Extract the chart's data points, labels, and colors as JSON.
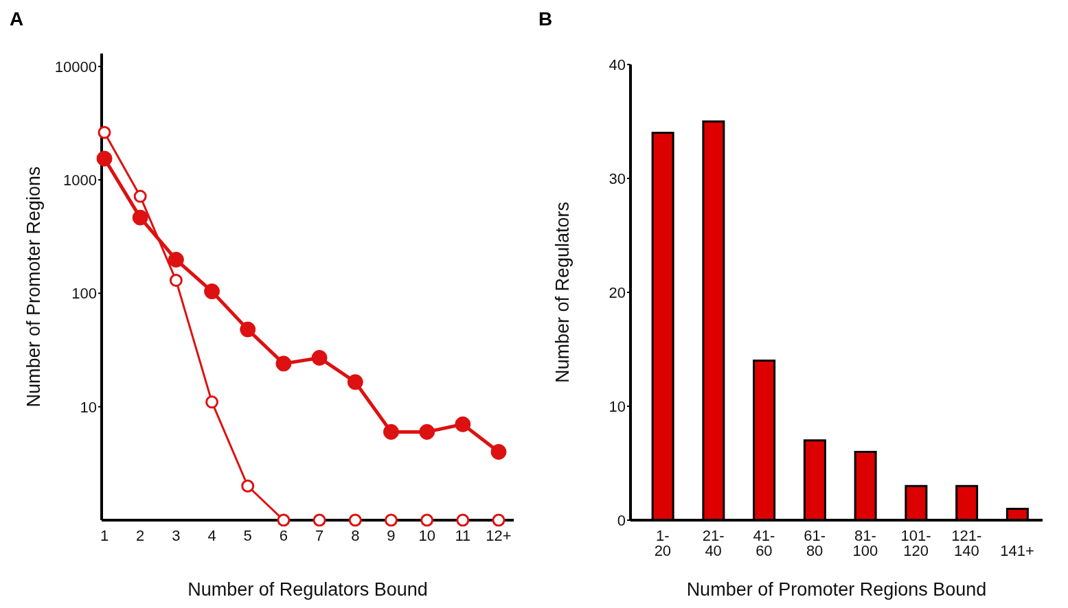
{
  "chart_data": [
    {
      "type": "line",
      "title": "A",
      "xlabel": "Number of Regulators Bound",
      "ylabel": "Number of Promoter Regions",
      "categories": [
        "1",
        "2",
        "3",
        "4",
        "5",
        "6",
        "7",
        "8",
        "9",
        "10",
        "11",
        "12+"
      ],
      "log": "y",
      "ylim": [
        1,
        13000
      ],
      "yticks": [
        10,
        100,
        1000,
        10000
      ],
      "grid": false,
      "legend": false,
      "marker": "circle",
      "series": [
        {
          "color": "#dd1111",
          "values": [
            1540,
            465,
            198,
            104,
            48,
            24,
            27,
            16.5,
            6,
            6,
            7,
            4
          ]
        },
        {
          "color": "#dd1111",
          "values": [
            2620,
            716,
            130,
            11,
            2,
            1,
            1,
            1,
            1,
            1,
            1,
            1
          ]
        }
      ]
    },
    {
      "type": "bar",
      "title": "B",
      "xlabel": "Number of Promoter Regions Bound",
      "ylabel": "Number of Regulators",
      "categories": [
        "1-20",
        "21-40",
        "41-60",
        "61-80",
        "81-100",
        "101-120",
        "121-140",
        "141+"
      ],
      "values": [
        34,
        35,
        14,
        7,
        6,
        3,
        3,
        1
      ],
      "color": "#dd0000",
      "ylim": [
        0,
        40
      ],
      "yticks": [
        0,
        10,
        20,
        30,
        40
      ],
      "grid": false,
      "legend": false
    }
  ]
}
